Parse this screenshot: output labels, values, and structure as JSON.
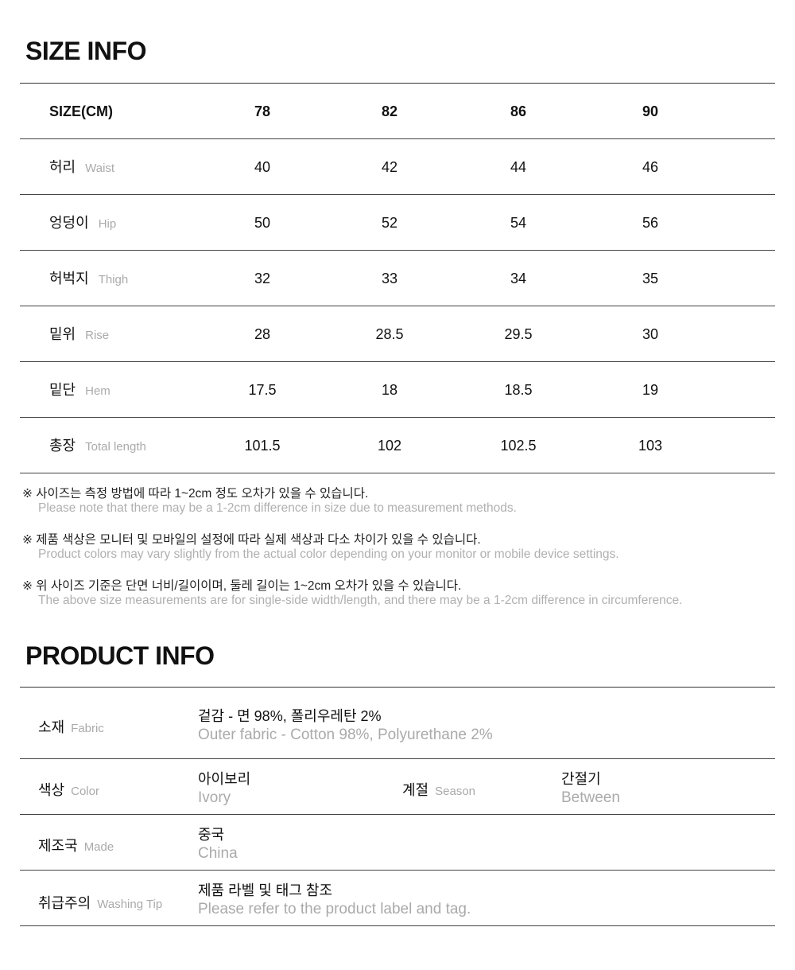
{
  "size_info": {
    "title": "SIZE INFO",
    "header": {
      "label": "SIZE(CM)",
      "sizes": [
        "78",
        "82",
        "86",
        "90"
      ]
    },
    "rows": [
      {
        "ko": "허리",
        "en": "Waist",
        "values": [
          "40",
          "42",
          "44",
          "46"
        ]
      },
      {
        "ko": "엉덩이",
        "en": "Hip",
        "values": [
          "50",
          "52",
          "54",
          "56"
        ]
      },
      {
        "ko": "허벅지",
        "en": "Thigh",
        "values": [
          "32",
          "33",
          "34",
          "35"
        ]
      },
      {
        "ko": "밑위",
        "en": "Rise",
        "values": [
          "28",
          "28.5",
          "29.5",
          "30"
        ]
      },
      {
        "ko": "밑단",
        "en": "Hem",
        "values": [
          "17.5",
          "18",
          "18.5",
          "19"
        ]
      },
      {
        "ko": "총장",
        "en": "Total length",
        "values": [
          "101.5",
          "102",
          "102.5",
          "103"
        ]
      }
    ]
  },
  "notes": [
    {
      "ko": "※ 사이즈는 측정 방법에 따라 1~2cm 정도 오차가 있을 수 있습니다.",
      "en": "Please note that there may be a 1-2cm difference in size due to measurement methods."
    },
    {
      "ko": "※ 제품 색상은 모니터 및 모바일의 설정에 따라 실제 색상과 다소 차이가 있을 수 있습니다.",
      "en": "Product colors may vary slightly from the actual color depending on your monitor or mobile device settings."
    },
    {
      "ko": "※ 위 사이즈 기준은 단면 너비/길이이며, 둘레 길이는 1~2cm 오차가 있을 수 있습니다.",
      "en": "The above size measurements are for single-side width/length, and there may be a 1-2cm difference in circumference."
    }
  ],
  "product_info": {
    "title": "PRODUCT INFO",
    "fabric": {
      "ko": "소재",
      "en": "Fabric",
      "value_ko": "겉감 - 면 98%, 폴리우레탄 2%",
      "value_en": "Outer fabric - Cotton 98%, Polyurethane 2%"
    },
    "color": {
      "ko": "색상",
      "en": "Color",
      "value_ko": "아이보리",
      "value_en": "Ivory"
    },
    "season": {
      "ko": "계절",
      "en": "Season",
      "value_ko": "간절기",
      "value_en": "Between"
    },
    "made": {
      "ko": "제조국",
      "en": "Made",
      "value_ko": "중국",
      "value_en": "China"
    },
    "washing": {
      "ko": "취급주의",
      "en": "Washing Tip",
      "value_ko": "제품 라벨 및 태그 참조",
      "value_en": "Please refer to the product label and tag."
    }
  }
}
